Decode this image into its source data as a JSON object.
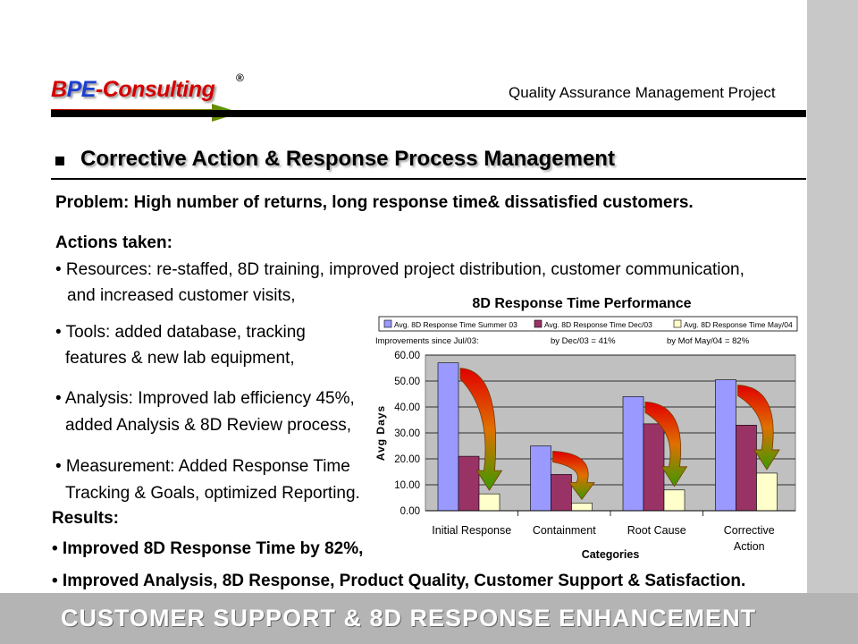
{
  "brand": {
    "logo_b": "B",
    "logo_p": "P",
    "logo_e": "E",
    "logo_rest": "-Consulting",
    "registered": "®"
  },
  "header": {
    "project_title": "Quality Assurance Management Project"
  },
  "section": {
    "title": "Corrective Action & Response Process Management"
  },
  "problem": {
    "text": "Problem: High number of returns, long response time& dissatisfied customers."
  },
  "actions": {
    "heading": "Actions taken:",
    "resources_1": "• Resources: re-staffed, 8D training, improved project distribution, customer communication,",
    "resources_2": "and increased customer visits,",
    "tools_1": "• Tools: added database, tracking",
    "tools_2": "features & new lab equipment,",
    "analysis_1": "• Analysis: Improved lab efficiency 45%,",
    "analysis_2": "added Analysis & 8D Review process,",
    "measurement_1": "• Measurement: Added Response Time",
    "measurement_2": "Tracking & Goals, optimized Reporting."
  },
  "results": {
    "heading": "Results:",
    "item_1": "• Improved 8D Response Time by 82%,",
    "item_2": "• Improved Analysis, 8D Response, Product Quality, Customer Support & Satisfaction."
  },
  "footer": {
    "text": "CUSTOMER SUPPORT & 8D RESPONSE ENHANCEMENT"
  },
  "chart_data": {
    "type": "bar",
    "title": "8D Response Time Performance",
    "categories": [
      "Initial Response",
      "Containment",
      "Root Cause",
      "Corrective Action"
    ],
    "series": [
      {
        "name": "Avg. 8D Response Time Summer 03",
        "values": [
          57.0,
          25.0,
          44.0,
          50.5
        ],
        "color": "#9999ff"
      },
      {
        "name": "Avg. 8D Response Time Dec/03",
        "values": [
          21.0,
          14.0,
          33.5,
          33.0
        ],
        "color": "#993366"
      },
      {
        "name": "Avg. 8D Response Time May/04",
        "values": [
          6.5,
          3.0,
          8.0,
          14.5
        ],
        "color": "#ffffcc"
      }
    ],
    "annotations": [
      "Improvements since Jul/03:",
      "by Dec/03 = 41%",
      "by Mof May/04 = 82%"
    ],
    "xlabel": "Categories",
    "ylabel": "Avg Days",
    "ylim": [
      0,
      60
    ],
    "yticks": [
      "0.00",
      "10.00",
      "20.00",
      "30.00",
      "40.00",
      "50.00",
      "60.00"
    ],
    "grid": true,
    "legend": "top",
    "plot_bg": "#c0c0c0"
  }
}
